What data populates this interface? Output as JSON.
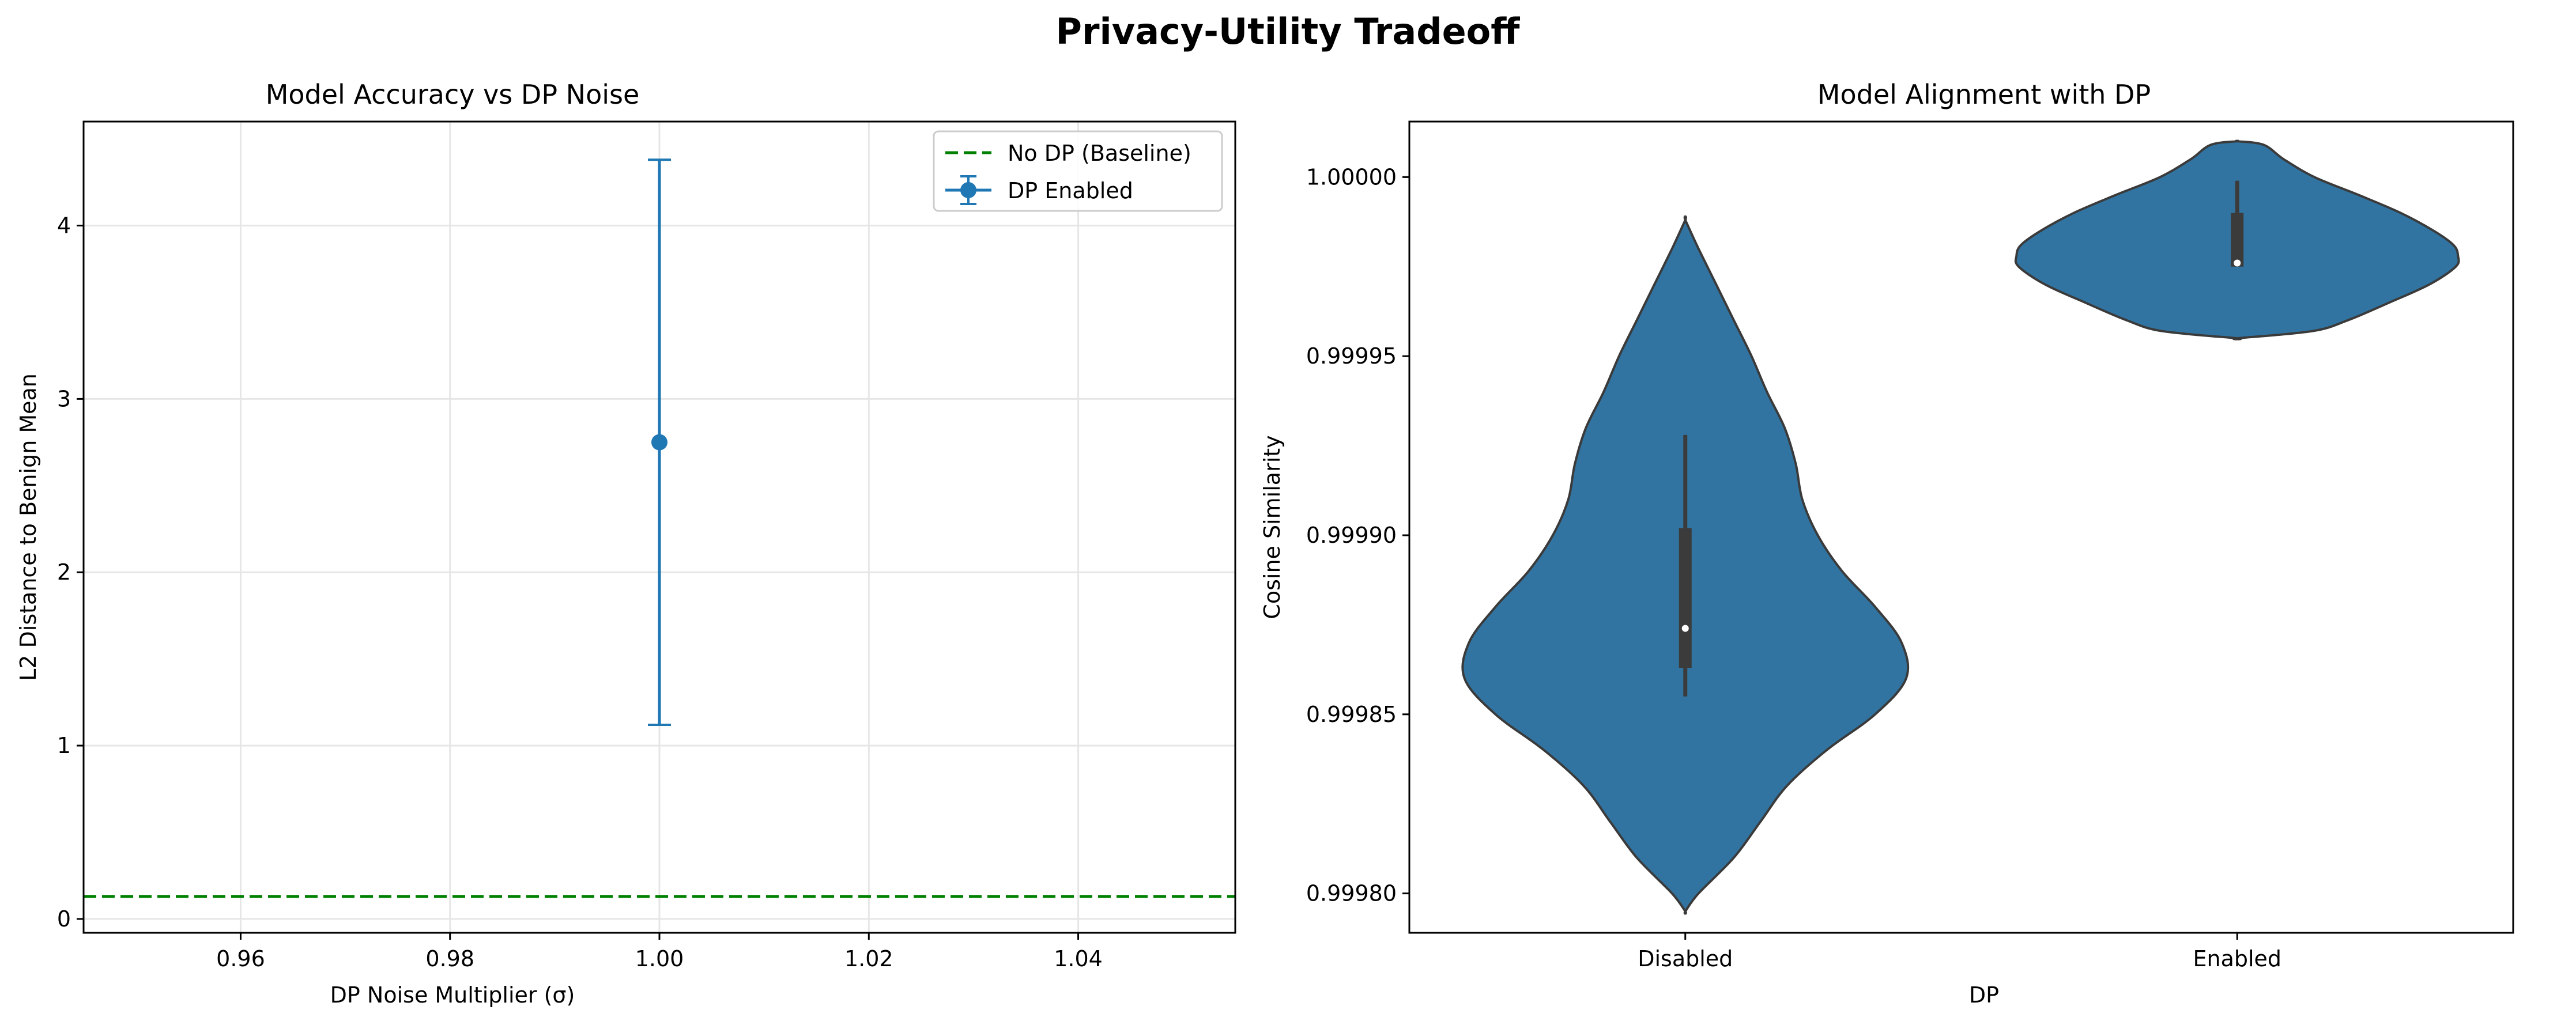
{
  "figure": {
    "title": "Privacy-Utility Tradeoff"
  },
  "colors": {
    "series_blue": "#1f77b4",
    "violin_blue": "#3274a1",
    "baseline_green": "#008000",
    "grid": "#e6e6e6",
    "box": "#3b3b3b"
  },
  "chart_data": [
    {
      "type": "errorbar",
      "title": "Model Accuracy vs DP Noise",
      "xlabel": "DP Noise Multiplier (σ)",
      "ylabel": "L2 Distance to Benign Mean",
      "xlim": [
        0.945,
        1.055
      ],
      "ylim": [
        -0.08,
        4.6
      ],
      "xticks": [
        0.96,
        0.98,
        1.0,
        1.02,
        1.04
      ],
      "xtick_labels": [
        "0.96",
        "0.98",
        "1.00",
        "1.02",
        "1.04"
      ],
      "yticks": [
        0,
        1,
        2,
        3,
        4
      ],
      "ytick_labels": [
        "0",
        "1",
        "2",
        "3",
        "4"
      ],
      "grid": true,
      "legend_position": "top-right",
      "legend": [
        {
          "label": "No DP (Baseline)",
          "style": "dashed-line"
        },
        {
          "label": "DP Enabled",
          "style": "errorbar-marker"
        }
      ],
      "baseline": {
        "name": "No DP (Baseline)",
        "y": 0.13
      },
      "series": [
        {
          "name": "DP Enabled",
          "x": [
            1.0
          ],
          "y": [
            2.75
          ],
          "yerr_low": [
            1.12
          ],
          "yerr_high": [
            4.38
          ]
        }
      ]
    },
    {
      "type": "violin",
      "title": "Model Alignment with DP",
      "xlabel": "DP",
      "ylabel": "Cosine Similarity",
      "ylim": [
        0.999789,
        1.0000155
      ],
      "yticks": [
        0.9998,
        0.99985,
        0.9999,
        0.99995,
        1.0
      ],
      "ytick_labels": [
        "0.99980",
        "0.99985",
        "0.99990",
        "0.99995",
        "1.00000"
      ],
      "categories": [
        "Disabled",
        "Enabled"
      ],
      "grid": false,
      "violins": [
        {
          "category": "Disabled",
          "min": 0.999795,
          "max": 0.999988,
          "q1": 0.999863,
          "median": 0.999874,
          "q3": 0.999902,
          "whisker_low": 0.999855,
          "whisker_high": 0.999928,
          "profile": [
            [
              0.999795,
              0.0
            ],
            [
              0.9998,
              0.06
            ],
            [
              0.99981,
              0.22
            ],
            [
              0.99982,
              0.34
            ],
            [
              0.99983,
              0.46
            ],
            [
              0.99984,
              0.64
            ],
            [
              0.99985,
              0.86
            ],
            [
              0.99986,
              1.0
            ],
            [
              0.99987,
              0.98
            ],
            [
              0.99988,
              0.86
            ],
            [
              0.99989,
              0.71
            ],
            [
              0.9999,
              0.6
            ],
            [
              0.99991,
              0.53
            ],
            [
              0.99992,
              0.5
            ],
            [
              0.99993,
              0.45
            ],
            [
              0.99994,
              0.37
            ],
            [
              0.99995,
              0.3
            ],
            [
              0.99996,
              0.22
            ],
            [
              0.99997,
              0.14
            ],
            [
              0.99998,
              0.06
            ],
            [
              0.999988,
              0.0
            ]
          ]
        },
        {
          "category": "Enabled",
          "min": 0.999955,
          "max": 1.00001,
          "q1": 0.999975,
          "median": 0.999976,
          "q3": 0.99999,
          "whisker_low": 0.999975,
          "whisker_high": 0.999999,
          "profile": [
            [
              0.999955,
              0.0
            ],
            [
              0.999957,
              0.34
            ],
            [
              0.99996,
              0.5
            ],
            [
              0.999965,
              0.69
            ],
            [
              0.99997,
              0.87
            ],
            [
              0.999975,
              0.99
            ],
            [
              0.999978,
              1.0
            ],
            [
              0.999981,
              0.98
            ],
            [
              0.999985,
              0.89
            ],
            [
              0.99999,
              0.74
            ],
            [
              0.999995,
              0.55
            ],
            [
              1.0,
              0.35
            ],
            [
              1.000005,
              0.21
            ],
            [
              1.000009,
              0.12
            ],
            [
              1.00001,
              0.0
            ]
          ]
        }
      ]
    }
  ]
}
